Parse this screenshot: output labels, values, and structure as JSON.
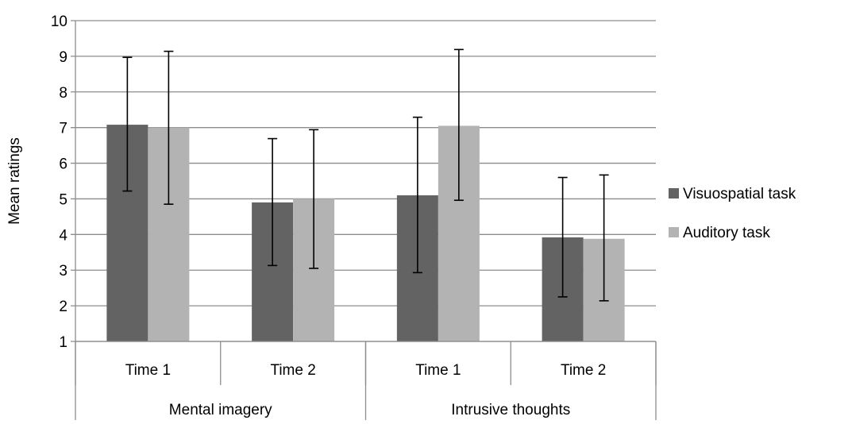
{
  "chart_data": {
    "type": "bar",
    "categories": [
      "Time 1",
      "Time 2",
      "Time 1",
      "Time 2"
    ],
    "groups": [
      {
        "label": "Mental imagery",
        "span": 2
      },
      {
        "label": "Intrusive thoughts",
        "span": 2
      }
    ],
    "series": [
      {
        "name": "Visuospatial task",
        "color": "#636363",
        "values": [
          7.08,
          4.9,
          5.1,
          3.92
        ],
        "error_low": [
          5.22,
          3.13,
          2.93,
          2.25
        ],
        "error_high": [
          8.97,
          6.69,
          7.29,
          5.6
        ]
      },
      {
        "name": "Auditory task",
        "color": "#b3b3b3",
        "values": [
          7.0,
          5.0,
          7.05,
          3.88
        ],
        "error_low": [
          4.85,
          3.05,
          4.96,
          2.14
        ],
        "error_high": [
          9.14,
          6.94,
          9.19,
          5.67
        ]
      }
    ],
    "ylabel": "Mean ratings",
    "xlabel": "",
    "title": "",
    "ylim": [
      1,
      10
    ],
    "yticks": [
      "1",
      "2",
      "3",
      "4",
      "5",
      "6",
      "7",
      "8",
      "9",
      "10"
    ],
    "grid": "horizontal",
    "legend_position": "right",
    "colors": {
      "gridline": "#8c8c8c",
      "axis": "#8c8c8c",
      "error_bar": "#000000"
    }
  }
}
